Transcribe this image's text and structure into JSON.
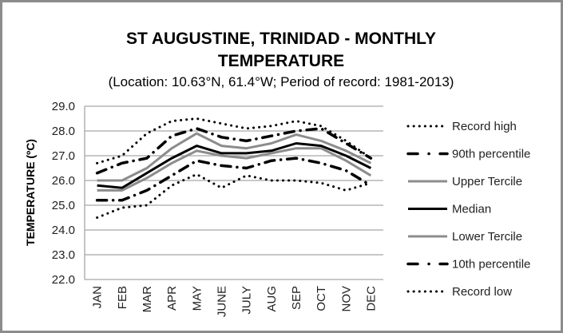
{
  "chart_data": {
    "type": "line",
    "title_line1": "ST AUGUSTINE, TRINIDAD - MONTHLY",
    "title_line2": "TEMPERATURE",
    "subtitle": "(Location: 10.63°N, 61.4°W; Period of record: 1981-2013)",
    "xlabel": "",
    "ylabel": "TEMPERATURE (ºC)",
    "ylim": [
      22.0,
      29.0
    ],
    "ytick_step": 1.0,
    "yticks": [
      "22.0",
      "23.0",
      "24.0",
      "25.0",
      "26.0",
      "27.0",
      "28.0",
      "29.0"
    ],
    "grid": true,
    "legend_position": "right",
    "categories": [
      "JAN",
      "FEB",
      "MAR",
      "APR",
      "MAY",
      "JUNE",
      "JULY",
      "AUG",
      "SEP",
      "OCT",
      "NOV",
      "DEC"
    ],
    "series": [
      {
        "name": "Record high",
        "style": "dotted",
        "color": "#000000",
        "values": [
          26.7,
          27.0,
          27.9,
          28.4,
          28.5,
          28.3,
          28.1,
          28.2,
          28.4,
          28.2,
          27.6,
          26.9
        ]
      },
      {
        "name": "90th percentile",
        "style": "dash-dot",
        "color": "#000000",
        "values": [
          26.3,
          26.7,
          26.9,
          27.8,
          28.1,
          27.75,
          27.6,
          27.8,
          28.0,
          28.1,
          27.5,
          26.9
        ]
      },
      {
        "name": "Upper Tercile",
        "style": "solid",
        "color": "#8c8c8c",
        "values": [
          26.0,
          26.0,
          26.5,
          27.3,
          27.9,
          27.4,
          27.3,
          27.5,
          27.85,
          27.6,
          27.2,
          26.7
        ]
      },
      {
        "name": "Median",
        "style": "solid",
        "color": "#000000",
        "values": [
          25.8,
          25.7,
          26.3,
          26.9,
          27.4,
          27.1,
          27.1,
          27.2,
          27.5,
          27.4,
          27.0,
          26.5
        ]
      },
      {
        "name": "Lower Tercile",
        "style": "solid",
        "color": "#8c8c8c",
        "values": [
          25.6,
          25.6,
          26.1,
          26.7,
          27.2,
          27.0,
          26.9,
          27.1,
          27.3,
          27.3,
          26.8,
          26.2
        ]
      },
      {
        "name": "10th percentile",
        "style": "dash-dot",
        "color": "#000000",
        "values": [
          25.2,
          25.2,
          25.6,
          26.2,
          26.8,
          26.6,
          26.5,
          26.8,
          26.9,
          26.7,
          26.4,
          25.8
        ]
      },
      {
        "name": "Record low",
        "style": "dotted",
        "color": "#000000",
        "values": [
          24.5,
          24.9,
          25.0,
          25.8,
          26.25,
          25.7,
          26.2,
          26.0,
          26.0,
          25.9,
          25.6,
          25.9
        ]
      }
    ]
  }
}
